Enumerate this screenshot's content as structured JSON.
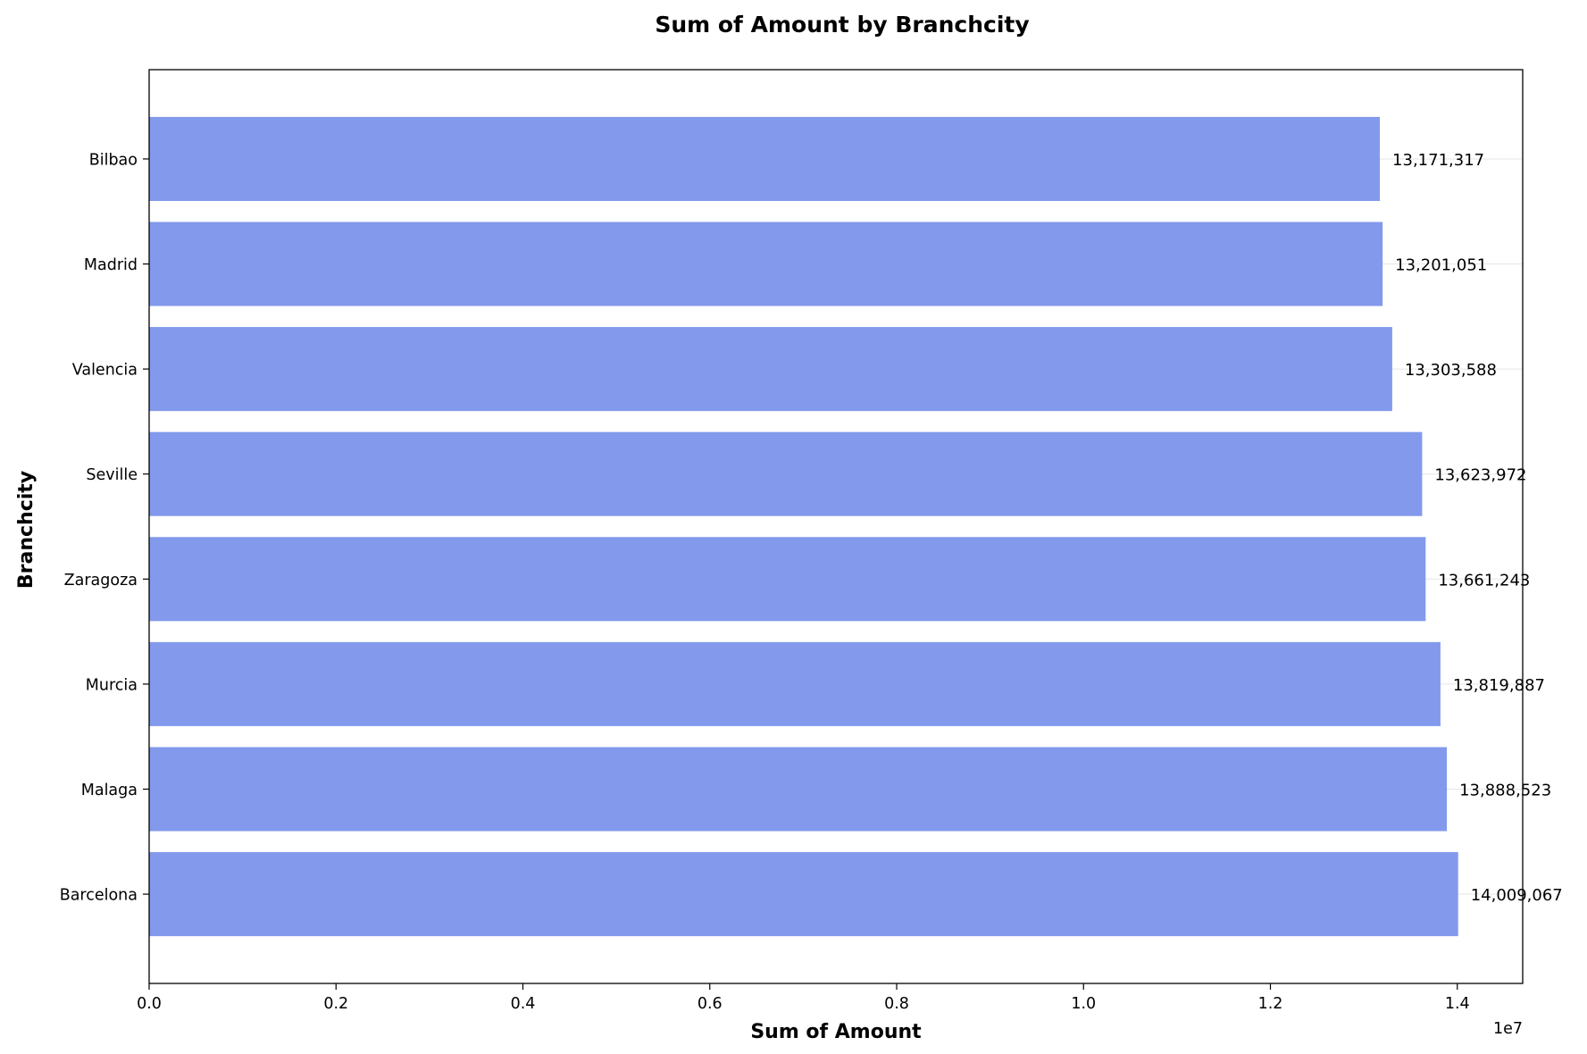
{
  "chart_data": {
    "type": "bar",
    "orientation": "horizontal",
    "title": "Sum of Amount by Branchcity",
    "xlabel": "Sum of Amount",
    "ylabel": "Branchcity",
    "x_offset_label": "1e7",
    "xlim": [
      0,
      14700000
    ],
    "x_ticks": [
      0,
      2000000,
      4000000,
      6000000,
      8000000,
      10000000,
      12000000,
      14000000
    ],
    "x_tick_labels": [
      "0.0",
      "0.2",
      "0.4",
      "0.6",
      "0.8",
      "1.0",
      "1.2",
      "1.4"
    ],
    "categories": [
      "Barcelona",
      "Malaga",
      "Murcia",
      "Zaragoza",
      "Seville",
      "Valencia",
      "Madrid",
      "Bilbao"
    ],
    "values": [
      14009067,
      13888523,
      13819887,
      13661243,
      13623972,
      13303588,
      13201051,
      13171317
    ],
    "data_labels": [
      "14,009,067",
      "13,888,523",
      "13,819,887",
      "13,661,243",
      "13,623,972",
      "13,303,588",
      "13,201,051",
      "13,171,317"
    ],
    "bar_color": "#8399ec",
    "grid": "y-major"
  }
}
